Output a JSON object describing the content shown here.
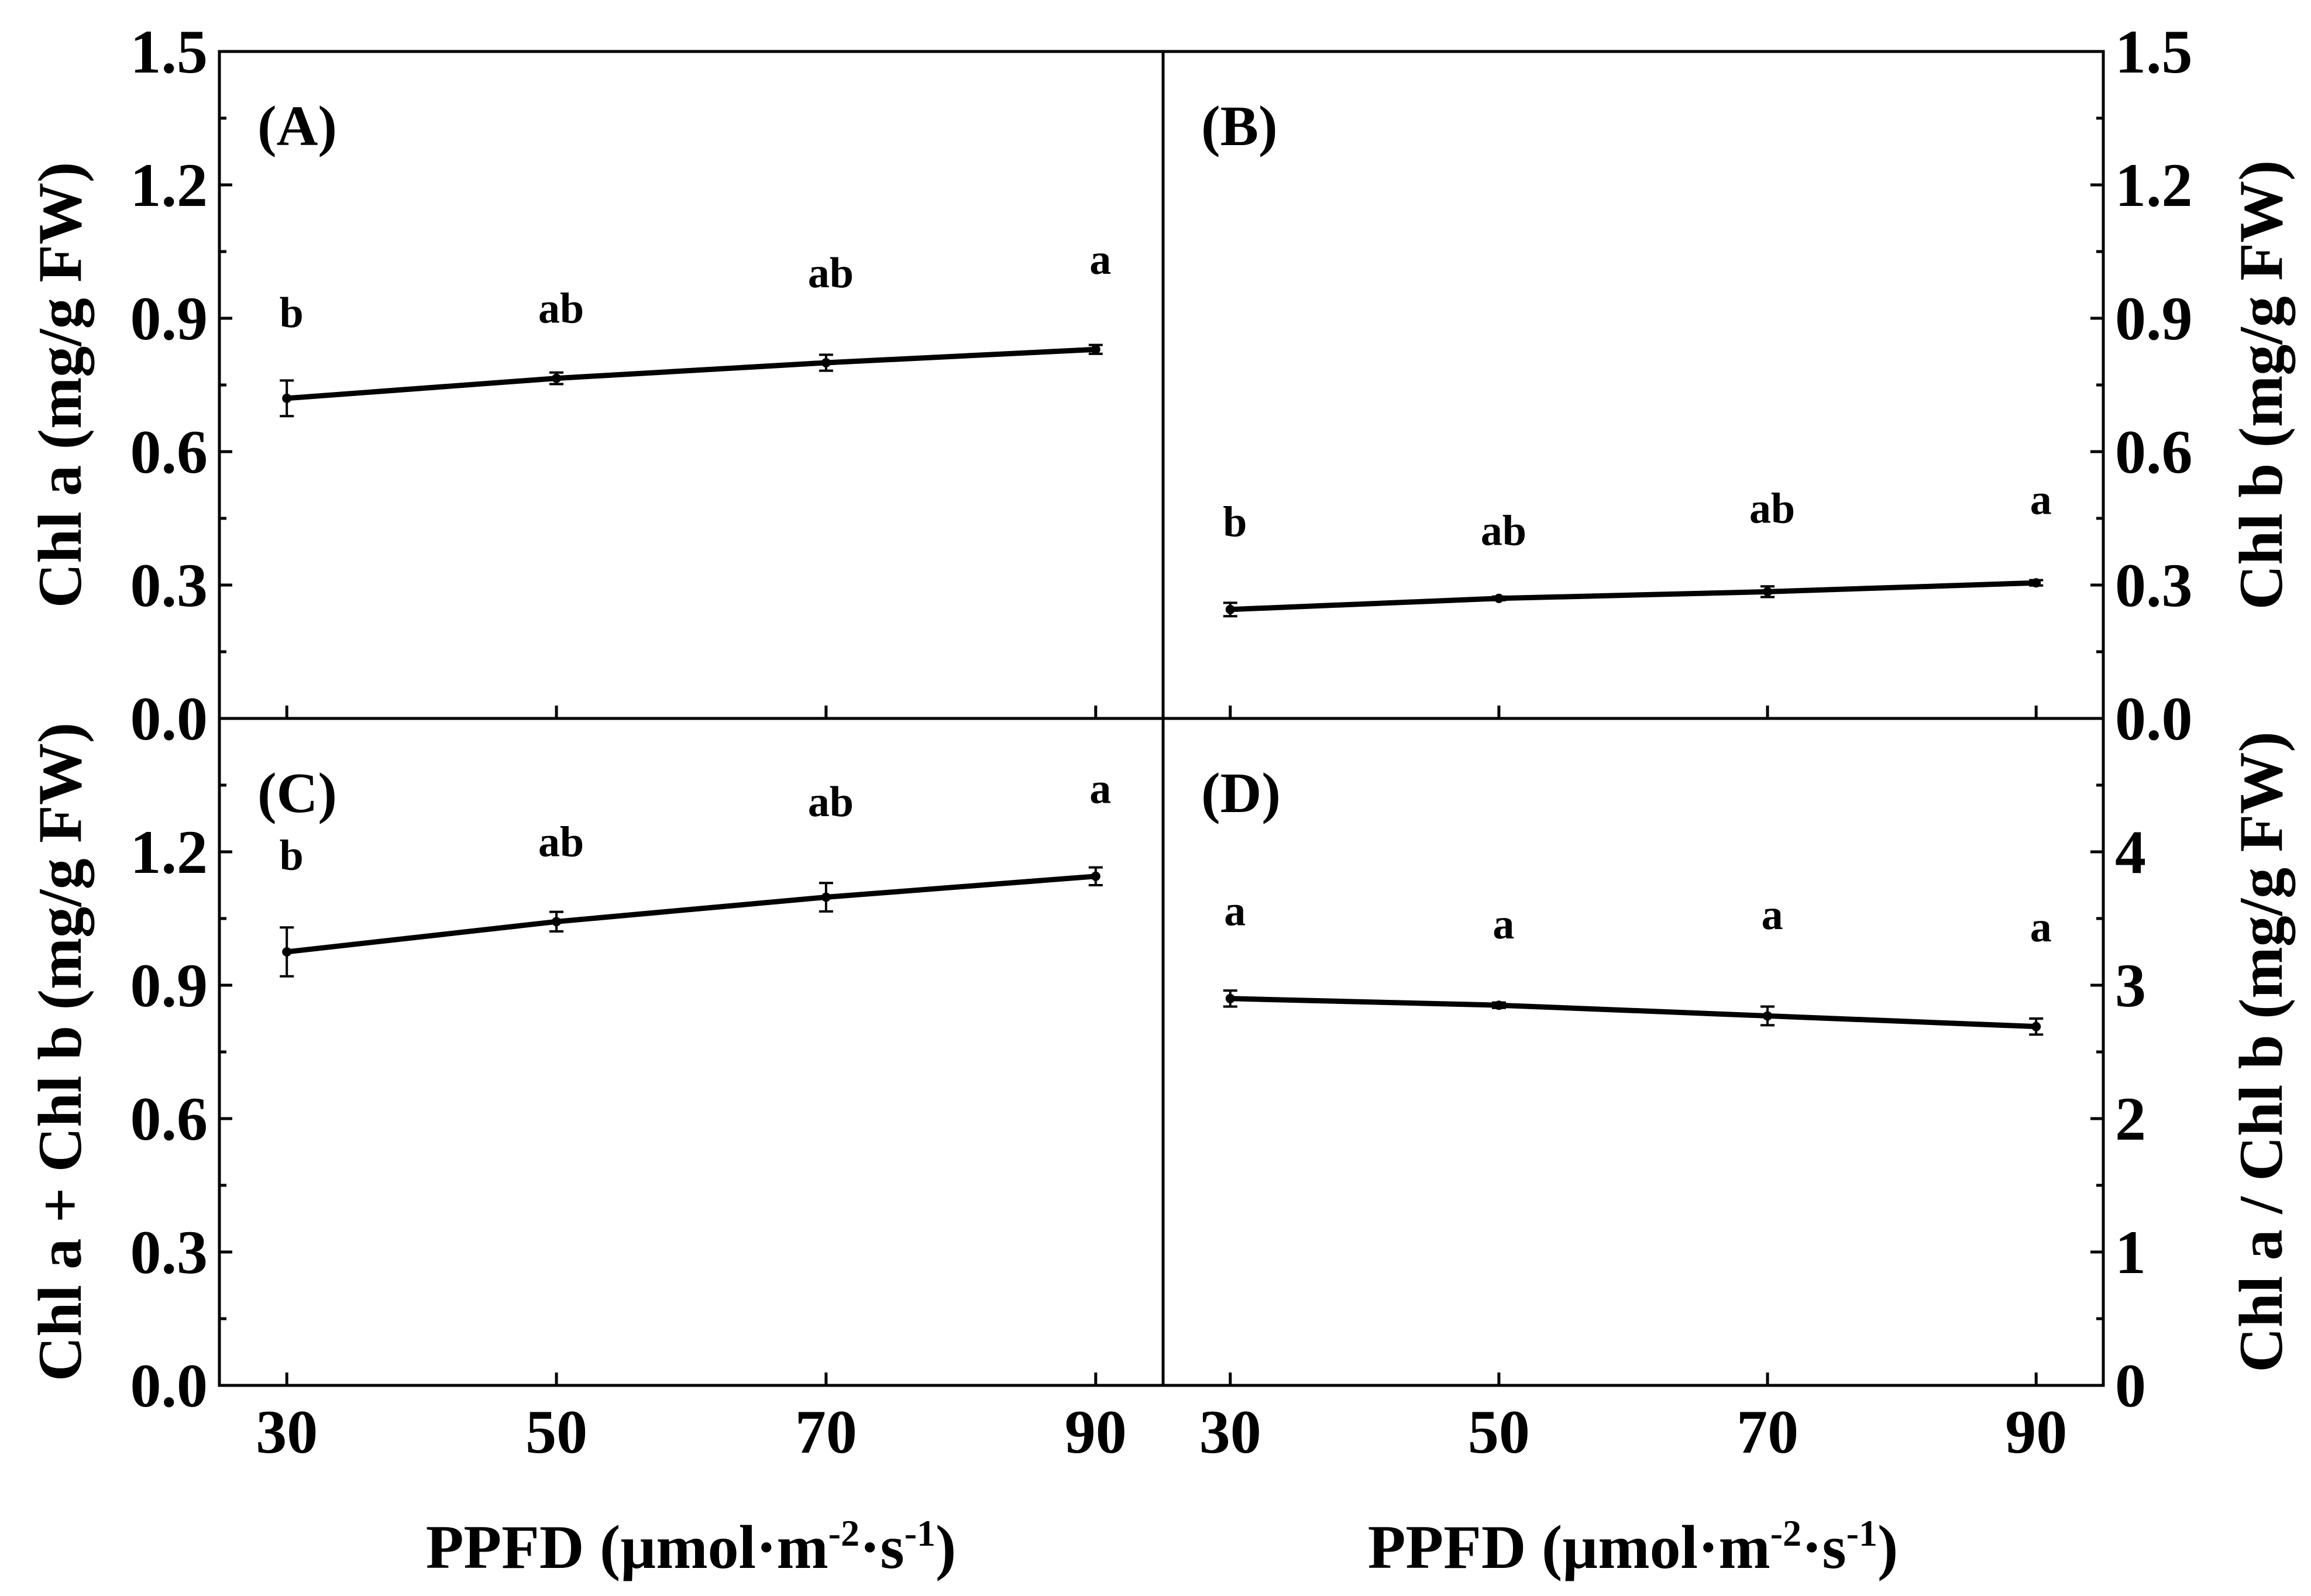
{
  "chart_data": [
    {
      "id": "A",
      "type": "line",
      "panel_label": "(A)",
      "x": [
        30,
        50,
        70,
        90
      ],
      "xlim": [
        25,
        95
      ],
      "xticks": [
        "30",
        "50",
        "70",
        "90"
      ],
      "y": [
        0.72,
        0.765,
        0.8,
        0.83
      ],
      "yerr": [
        0.04,
        0.013,
        0.018,
        0.01
      ],
      "ylim": [
        0,
        1.5
      ],
      "yticks": [
        "0.0",
        "0.3",
        "0.6",
        "0.9",
        "1.2",
        "1.5"
      ],
      "ylabel": "Chl a (mg/g FW)",
      "ylabel_side": "left",
      "sig_letters": [
        "b",
        "ab",
        "ab",
        "a"
      ],
      "sig_y": [
        0.88,
        0.89,
        0.97,
        1.0
      ]
    },
    {
      "id": "B",
      "type": "line",
      "panel_label": "(B)",
      "x": [
        30,
        50,
        70,
        90
      ],
      "xlim": [
        25,
        95
      ],
      "xticks": [
        "30",
        "50",
        "70",
        "90"
      ],
      "y": [
        0.245,
        0.27,
        0.285,
        0.305
      ],
      "yerr": [
        0.015,
        0.004,
        0.012,
        0.006
      ],
      "ylim": [
        0,
        1.5
      ],
      "yticks": [
        "0.0",
        "0.3",
        "0.6",
        "0.9",
        "1.2",
        "1.5"
      ],
      "ylabel": "Chl b (mg/g FW)",
      "ylabel_side": "right",
      "sig_letters": [
        "b",
        "ab",
        "ab",
        "a"
      ],
      "sig_y": [
        0.41,
        0.39,
        0.44,
        0.46
      ]
    },
    {
      "id": "C",
      "type": "line",
      "panel_label": "(C)",
      "x": [
        30,
        50,
        70,
        90
      ],
      "xlim": [
        25,
        95
      ],
      "xticks": [
        "30",
        "50",
        "70",
        "90"
      ],
      "y": [
        0.975,
        1.043,
        1.098,
        1.145
      ],
      "yerr": [
        0.055,
        0.022,
        0.032,
        0.02
      ],
      "ylim": [
        0,
        1.5
      ],
      "yticks": [
        "0.0",
        "0.3",
        "0.6",
        "0.9",
        "1.2",
        "1.5"
      ],
      "ylabel": "Chl a + Chl b (mg/g FW)",
      "ylabel_side": "left",
      "sig_letters": [
        "b",
        "ab",
        "ab",
        "a"
      ],
      "sig_y": [
        1.16,
        1.19,
        1.28,
        1.31
      ]
    },
    {
      "id": "D",
      "type": "line",
      "panel_label": "(D)",
      "x": [
        30,
        50,
        70,
        90
      ],
      "xlim": [
        25,
        95
      ],
      "xticks": [
        "30",
        "50",
        "70",
        "90"
      ],
      "y": [
        2.9,
        2.85,
        2.77,
        2.69
      ],
      "yerr": [
        0.06,
        0.02,
        0.07,
        0.06
      ],
      "ylim": [
        0,
        5
      ],
      "yticks": [
        "0",
        "1",
        "2",
        "3",
        "4"
      ],
      "ylabel": "Chl a / Chl b (mg/g FW)",
      "ylabel_side": "right",
      "sig_letters": [
        "a",
        "a",
        "a",
        "a"
      ],
      "sig_y": [
        3.45,
        3.35,
        3.42,
        3.33
      ]
    }
  ],
  "xlabel": {
    "prefix": "PPFD (µmol·m",
    "sup1": "-2",
    "mid": "·s",
    "sup2": "-1",
    "suffix": ")"
  }
}
